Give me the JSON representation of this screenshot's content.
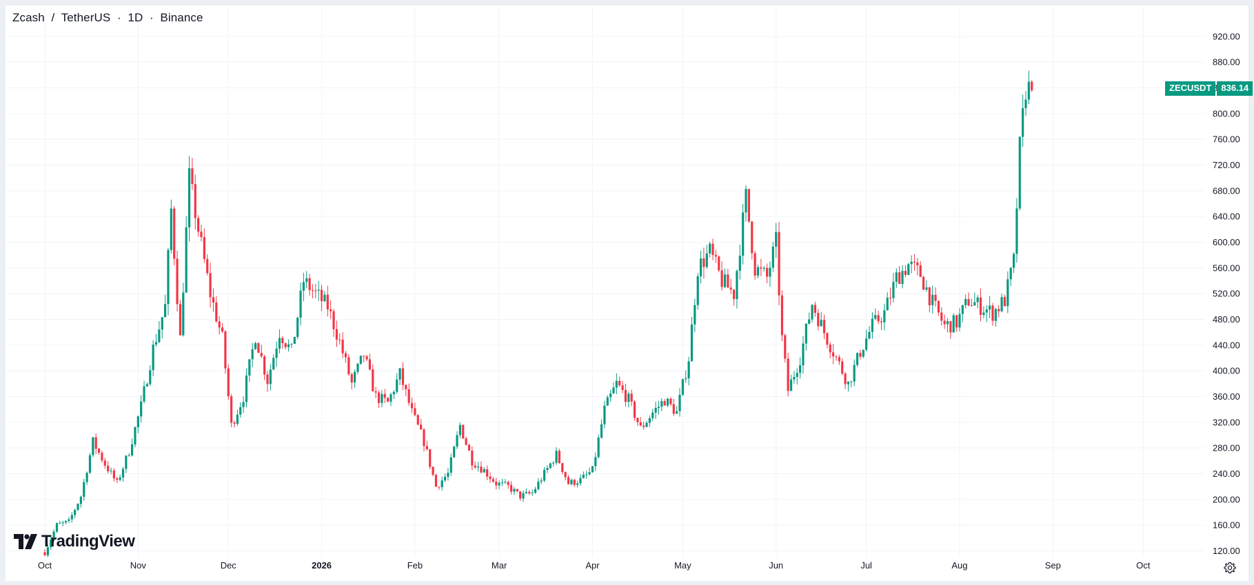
{
  "header": {
    "symbol_name": "Zcash",
    "separator": "/",
    "quote_name": "TetherUS",
    "interval": "1D",
    "dot": "·",
    "exchange": "Binance"
  },
  "price_label": {
    "symbol": "ZECUSDT",
    "value": "836.14"
  },
  "branding": {
    "logo_text": "TradingView"
  },
  "colors": {
    "up": "#089981",
    "down": "#f23645",
    "grid": "#f0f3fa",
    "text": "#131722"
  },
  "icons": {
    "settings": "gear-icon",
    "logo": "tradingview-logo-icon"
  },
  "chart_data": {
    "type": "candlestick",
    "title": "Zcash / TetherUS · 1D · Binance",
    "y_axis": {
      "ticks": [
        "120.00",
        "160.00",
        "200.00",
        "240.00",
        "280.00",
        "320.00",
        "360.00",
        "400.00",
        "440.00",
        "480.00",
        "520.00",
        "560.00",
        "600.00",
        "640.00",
        "680.00",
        "720.00",
        "760.00",
        "800.00",
        "840.00",
        "880.00",
        "920.00"
      ],
      "range": [
        90,
        945
      ]
    },
    "x_axis": {
      "ticks": [
        {
          "label": "Oct",
          "date": "2025-10-01",
          "bold": false
        },
        {
          "label": "Nov",
          "date": "2025-11-01",
          "bold": false
        },
        {
          "label": "Dec",
          "date": "2025-12-01",
          "bold": false
        },
        {
          "label": "2026",
          "date": "2026-01-01",
          "bold": true
        },
        {
          "label": "Feb",
          "date": "2026-02-01",
          "bold": false
        },
        {
          "label": "Mar",
          "date": "2026-03-01",
          "bold": false
        },
        {
          "label": "Apr",
          "date": "2026-04-01",
          "bold": false
        },
        {
          "label": "May",
          "date": "2026-05-01",
          "bold": false
        },
        {
          "label": "Jun",
          "date": "2026-06-01",
          "bold": false
        },
        {
          "label": "Jul",
          "date": "2026-07-01",
          "bold": false
        },
        {
          "label": "Aug",
          "date": "2026-08-01",
          "bold": false
        },
        {
          "label": "Sep",
          "date": "2026-09-01",
          "bold": false
        },
        {
          "label": "Oct",
          "date": "2026-10-01",
          "bold": false
        }
      ]
    },
    "grid": true,
    "last_price": 836.14,
    "close_series": [
      {
        "date": "2025-10-01",
        "close": 118
      },
      {
        "date": "2025-10-05",
        "close": 160
      },
      {
        "date": "2025-10-09",
        "close": 165
      },
      {
        "date": "2025-10-13",
        "close": 205
      },
      {
        "date": "2025-10-17",
        "close": 290
      },
      {
        "date": "2025-10-21",
        "close": 255
      },
      {
        "date": "2025-10-25",
        "close": 225
      },
      {
        "date": "2025-10-29",
        "close": 275
      },
      {
        "date": "2025-11-02",
        "close": 345
      },
      {
        "date": "2025-11-06",
        "close": 435
      },
      {
        "date": "2025-11-10",
        "close": 500
      },
      {
        "date": "2025-11-12",
        "close": 650
      },
      {
        "date": "2025-11-15",
        "close": 450
      },
      {
        "date": "2025-11-18",
        "close": 700
      },
      {
        "date": "2025-11-21",
        "close": 620
      },
      {
        "date": "2025-11-25",
        "close": 520
      },
      {
        "date": "2025-11-29",
        "close": 450
      },
      {
        "date": "2025-12-02",
        "close": 315
      },
      {
        "date": "2025-12-06",
        "close": 360
      },
      {
        "date": "2025-12-10",
        "close": 455
      },
      {
        "date": "2025-12-14",
        "close": 385
      },
      {
        "date": "2025-12-18",
        "close": 460
      },
      {
        "date": "2025-12-22",
        "close": 430
      },
      {
        "date": "2025-12-26",
        "close": 540
      },
      {
        "date": "2025-12-30",
        "close": 520
      },
      {
        "date": "2026-01-03",
        "close": 500
      },
      {
        "date": "2026-01-07",
        "close": 445
      },
      {
        "date": "2026-01-11",
        "close": 380
      },
      {
        "date": "2026-01-15",
        "close": 425
      },
      {
        "date": "2026-01-19",
        "close": 360
      },
      {
        "date": "2026-01-23",
        "close": 350
      },
      {
        "date": "2026-01-27",
        "close": 395
      },
      {
        "date": "2026-01-31",
        "close": 335
      },
      {
        "date": "2026-02-04",
        "close": 290
      },
      {
        "date": "2026-02-08",
        "close": 220
      },
      {
        "date": "2026-02-12",
        "close": 240
      },
      {
        "date": "2026-02-16",
        "close": 315
      },
      {
        "date": "2026-02-20",
        "close": 260
      },
      {
        "date": "2026-02-24",
        "close": 245
      },
      {
        "date": "2026-02-28",
        "close": 225
      },
      {
        "date": "2026-03-04",
        "close": 220
      },
      {
        "date": "2026-03-08",
        "close": 205
      },
      {
        "date": "2026-03-12",
        "close": 210
      },
      {
        "date": "2026-03-16",
        "close": 240
      },
      {
        "date": "2026-03-20",
        "close": 270
      },
      {
        "date": "2026-03-24",
        "close": 225
      },
      {
        "date": "2026-03-28",
        "close": 230
      },
      {
        "date": "2026-04-01",
        "close": 245
      },
      {
        "date": "2026-04-05",
        "close": 340
      },
      {
        "date": "2026-04-09",
        "close": 380
      },
      {
        "date": "2026-04-13",
        "close": 355
      },
      {
        "date": "2026-04-17",
        "close": 310
      },
      {
        "date": "2026-04-21",
        "close": 335
      },
      {
        "date": "2026-04-25",
        "close": 355
      },
      {
        "date": "2026-04-29",
        "close": 335
      },
      {
        "date": "2026-05-03",
        "close": 420
      },
      {
        "date": "2026-05-06",
        "close": 560
      },
      {
        "date": "2026-05-10",
        "close": 585
      },
      {
        "date": "2026-05-14",
        "close": 540
      },
      {
        "date": "2026-05-18",
        "close": 520
      },
      {
        "date": "2026-05-22",
        "close": 670
      },
      {
        "date": "2026-05-25",
        "close": 560
      },
      {
        "date": "2026-05-29",
        "close": 545
      },
      {
        "date": "2026-06-01",
        "close": 600
      },
      {
        "date": "2026-06-03",
        "close": 450
      },
      {
        "date": "2026-06-05",
        "close": 370
      },
      {
        "date": "2026-06-09",
        "close": 420
      },
      {
        "date": "2026-06-13",
        "close": 505
      },
      {
        "date": "2026-06-17",
        "close": 460
      },
      {
        "date": "2026-06-21",
        "close": 420
      },
      {
        "date": "2026-06-25",
        "close": 380
      },
      {
        "date": "2026-06-29",
        "close": 430
      },
      {
        "date": "2026-07-03",
        "close": 470
      },
      {
        "date": "2026-07-07",
        "close": 490
      },
      {
        "date": "2026-07-11",
        "close": 545
      },
      {
        "date": "2026-07-15",
        "close": 565
      },
      {
        "date": "2026-07-19",
        "close": 550
      },
      {
        "date": "2026-07-23",
        "close": 505
      },
      {
        "date": "2026-07-27",
        "close": 470
      },
      {
        "date": "2026-07-31",
        "close": 475
      },
      {
        "date": "2026-08-04",
        "close": 510
      },
      {
        "date": "2026-08-08",
        "close": 500
      },
      {
        "date": "2026-08-12",
        "close": 490
      },
      {
        "date": "2026-08-16",
        "close": 510
      },
      {
        "date": "2026-08-19",
        "close": 570
      },
      {
        "date": "2026-08-21",
        "close": 745
      },
      {
        "date": "2026-08-23",
        "close": 840
      },
      {
        "date": "2026-08-25",
        "close": 836.14
      }
    ]
  }
}
